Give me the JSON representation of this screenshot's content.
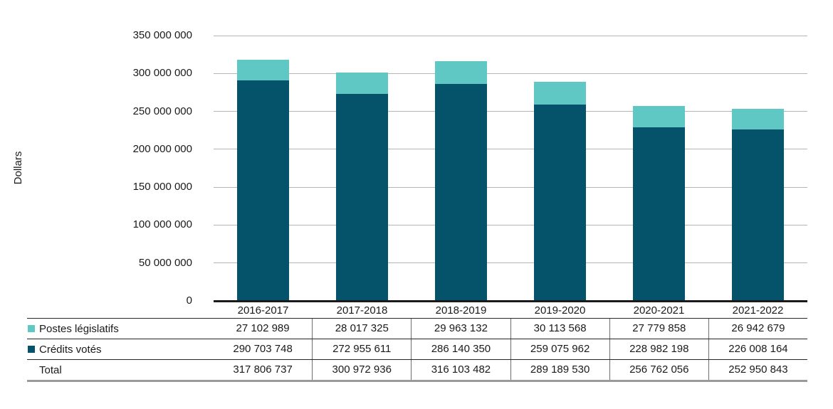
{
  "chart": {
    "y_ticks": [
      "350 000 000",
      "300 000 000",
      "250 000 000",
      "200 000 000",
      "150 000 000",
      "100 000 000",
      "50 000 000",
      "0"
    ]
  },
  "chart_data": {
    "type": "bar",
    "stacked": true,
    "title": "",
    "xlabel": "",
    "ylabel": "Dollars",
    "ylim": [
      0,
      350000000
    ],
    "ytick_interval": 50000000,
    "grid": true,
    "legend_position": "table-left-column",
    "categories": [
      "2016-2017",
      "2017-2018",
      "2018-2019",
      "2019-2020",
      "2020-2021",
      "2021-2022"
    ],
    "series": [
      {
        "name": "Postes législatifs",
        "color": "#5fc8c5",
        "stack_level": "top",
        "values": [
          27102989,
          28017325,
          29963132,
          30113568,
          27779858,
          26942679
        ]
      },
      {
        "name": "Crédits votés",
        "color": "#04536b",
        "stack_level": "bottom",
        "values": [
          290703748,
          272955611,
          286140350,
          259075962,
          228982198,
          226008164
        ]
      }
    ],
    "totals": [
      317806737,
      300972936,
      316103482,
      289189530,
      256762056,
      252950843
    ]
  },
  "table": {
    "rows": [
      {
        "label": "Postes législatifs",
        "swatch_color": "#5fc8c5",
        "values": [
          "27 102 989",
          "28 017 325",
          "29 963 132",
          "30 113 568",
          "27 779 858",
          "26 942 679"
        ]
      },
      {
        "label": "Crédits votés",
        "swatch_color": "#04536b",
        "values": [
          "290 703 748",
          "272 955 611",
          "286 140 350",
          "259 075 962",
          "228 982 198",
          "226 008 164"
        ]
      },
      {
        "label": "Total",
        "swatch_color": null,
        "values": [
          "317 806 737",
          "300 972 936",
          "316 103 482",
          "289 189 530",
          "256 762 056",
          "252 950 843"
        ]
      }
    ]
  },
  "colors": {
    "postes_legislatifs": "#5fc8c5",
    "credits_votes": "#04536b",
    "gridline": "#b5b5b5",
    "axis": "#1a1a1a"
  }
}
